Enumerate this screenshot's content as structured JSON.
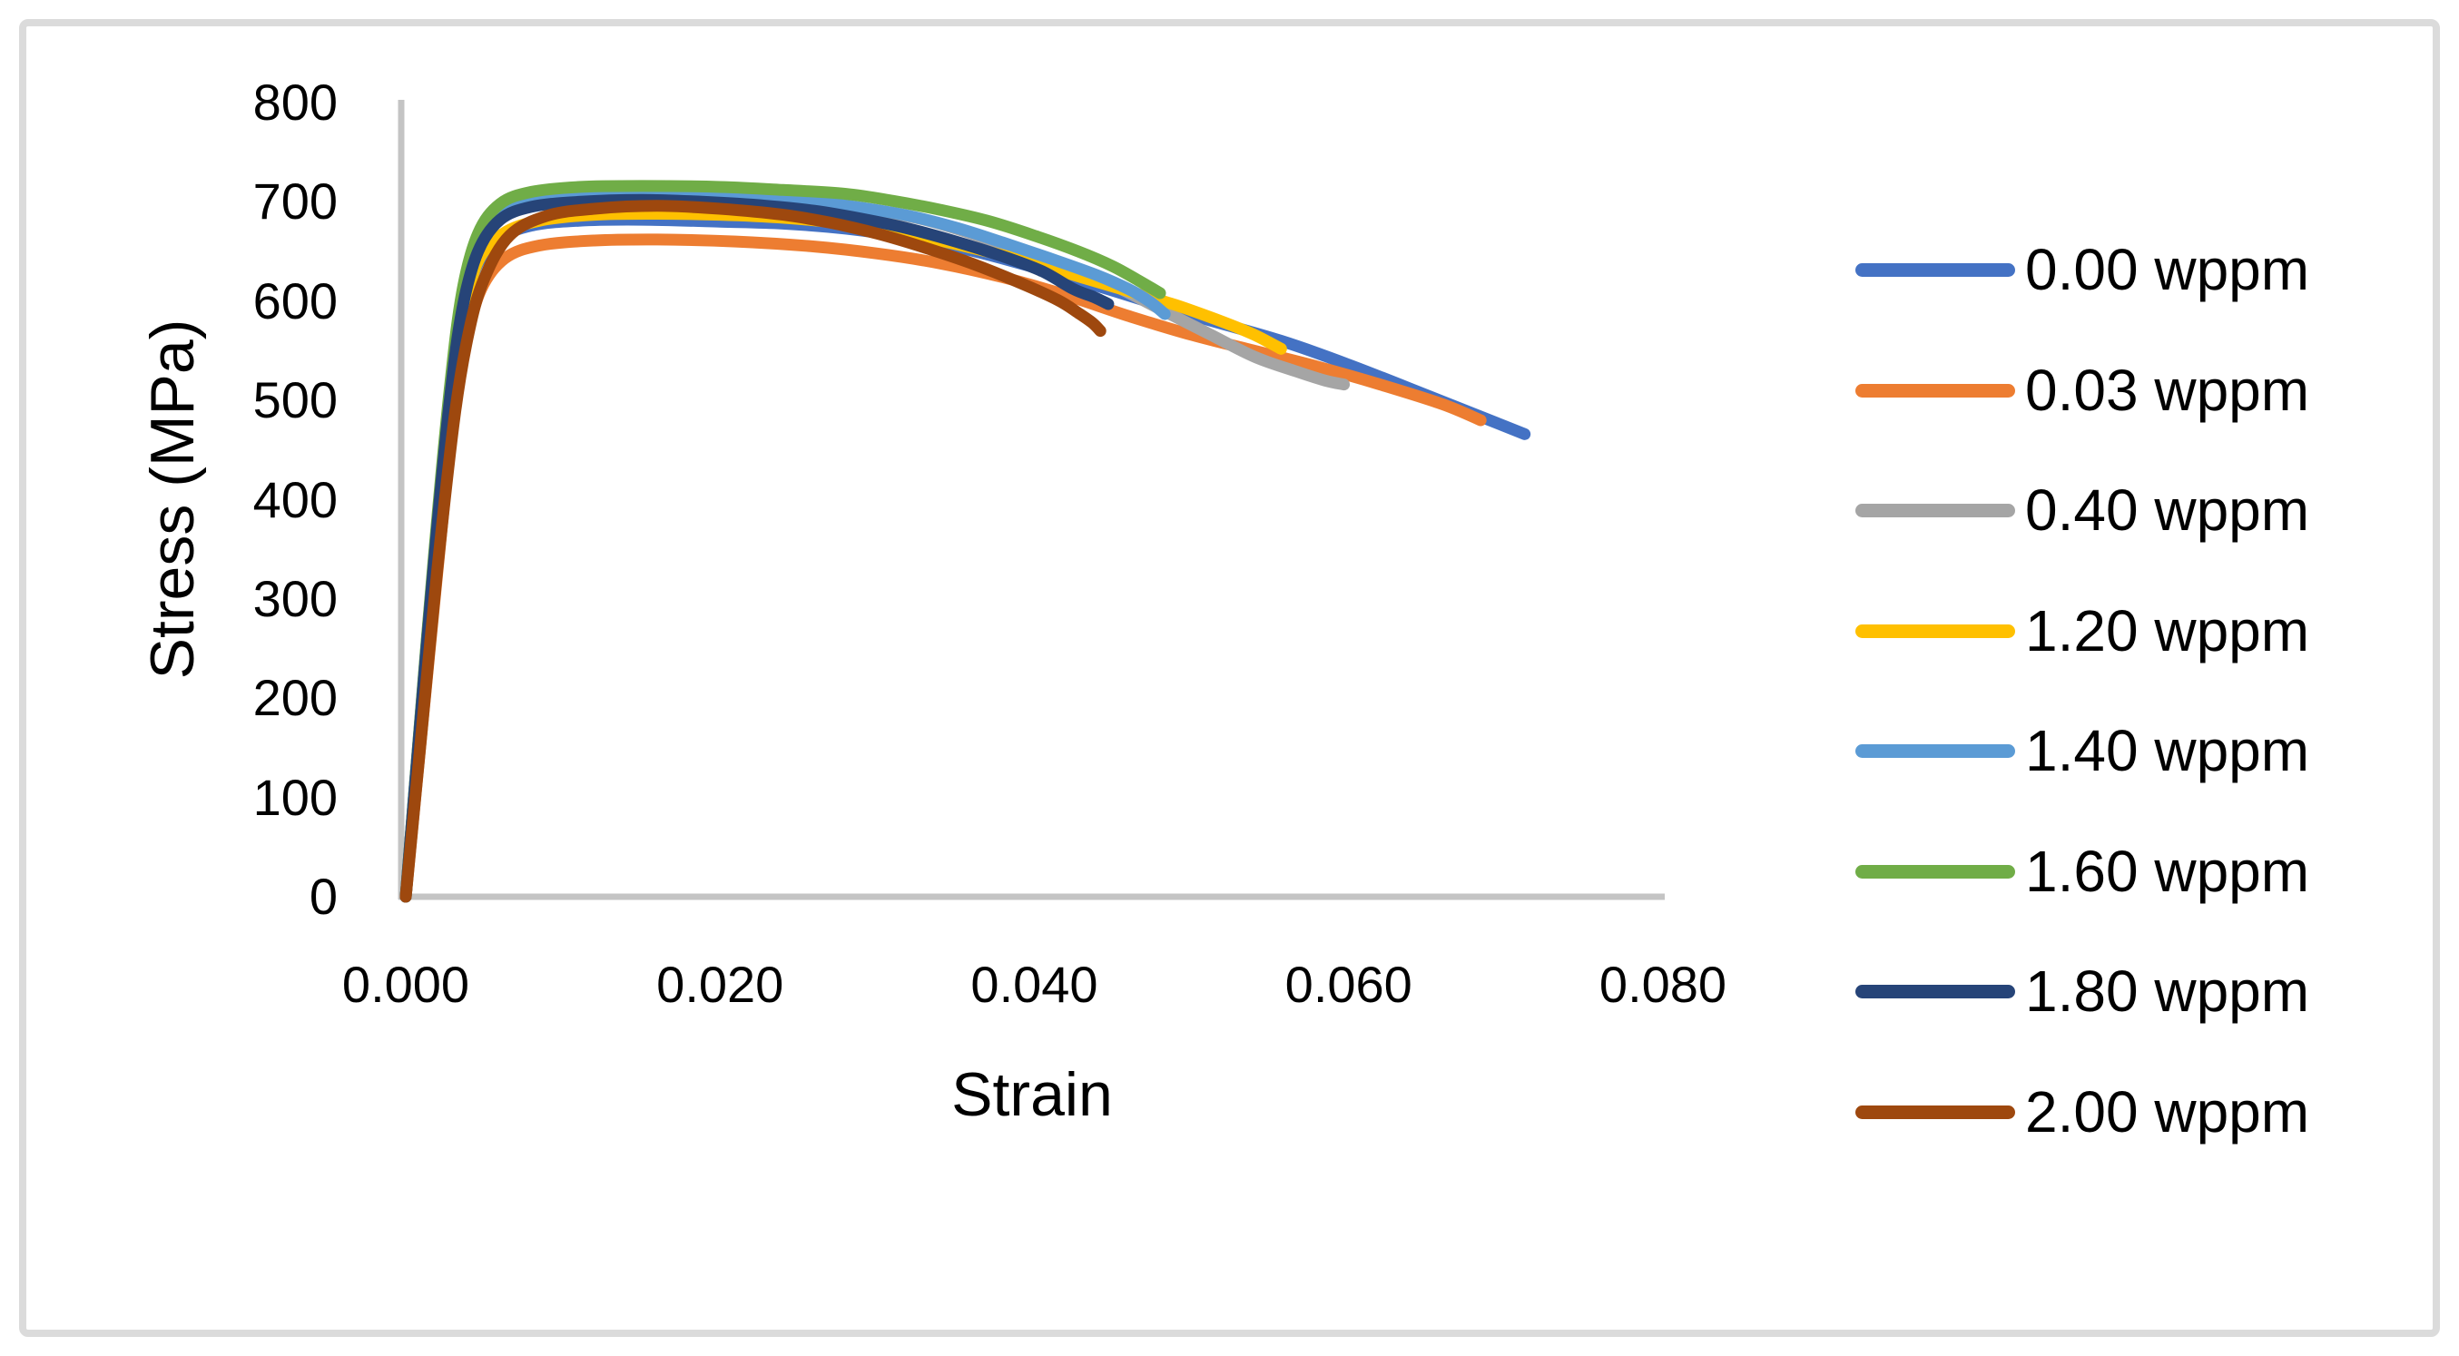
{
  "chart_data": {
    "type": "line",
    "title": "",
    "xlabel": "Strain",
    "ylabel": "Stress (MPa)",
    "xlim": [
      0.0,
      0.08
    ],
    "ylim": [
      0,
      800
    ],
    "grid": false,
    "legend_position": "right",
    "x_ticks": [
      {
        "label": "0.000",
        "value": 0.0
      },
      {
        "label": "0.020",
        "value": 0.02
      },
      {
        "label": "0.040",
        "value": 0.04
      },
      {
        "label": "0.060",
        "value": 0.06
      },
      {
        "label": "0.080",
        "value": 0.08
      }
    ],
    "y_ticks": [
      {
        "label": "0",
        "value": 0
      },
      {
        "label": "100",
        "value": 100
      },
      {
        "label": "200",
        "value": 200
      },
      {
        "label": "300",
        "value": 300
      },
      {
        "label": "400",
        "value": 400
      },
      {
        "label": "500",
        "value": 500
      },
      {
        "label": "600",
        "value": 600
      },
      {
        "label": "700",
        "value": 700
      },
      {
        "label": "800",
        "value": 800
      }
    ],
    "series": [
      {
        "name": "0.00 wppm",
        "color": "#4472C4",
        "points": [
          [
            0,
            0
          ],
          [
            0.0008,
            150
          ],
          [
            0.0018,
            330
          ],
          [
            0.0028,
            490
          ],
          [
            0.0036,
            580
          ],
          [
            0.0045,
            635
          ],
          [
            0.006,
            663
          ],
          [
            0.008,
            676
          ],
          [
            0.011,
            681
          ],
          [
            0.015,
            682
          ],
          [
            0.02,
            680
          ],
          [
            0.024,
            678
          ],
          [
            0.028,
            673
          ],
          [
            0.032,
            664
          ],
          [
            0.036,
            651
          ],
          [
            0.04,
            634
          ],
          [
            0.0447,
            612
          ],
          [
            0.05,
            586
          ],
          [
            0.0557,
            560
          ],
          [
            0.06,
            536
          ],
          [
            0.065,
            505
          ],
          [
            0.0712,
            466
          ]
        ]
      },
      {
        "name": "0.03 wppm",
        "color": "#ED7D31",
        "points": [
          [
            0,
            0
          ],
          [
            0.0009,
            148
          ],
          [
            0.002,
            325
          ],
          [
            0.003,
            478
          ],
          [
            0.0039,
            562
          ],
          [
            0.0048,
            612
          ],
          [
            0.0063,
            643
          ],
          [
            0.0085,
            656
          ],
          [
            0.012,
            661
          ],
          [
            0.016,
            662
          ],
          [
            0.021,
            660
          ],
          [
            0.026,
            655
          ],
          [
            0.03,
            648
          ],
          [
            0.034,
            638
          ],
          [
            0.038,
            624
          ],
          [
            0.042,
            606
          ],
          [
            0.046,
            585
          ],
          [
            0.05,
            566
          ],
          [
            0.054,
            550
          ],
          [
            0.058,
            534
          ],
          [
            0.062,
            516
          ],
          [
            0.066,
            496
          ],
          [
            0.0684,
            480
          ]
        ]
      },
      {
        "name": "0.40 wppm",
        "color": "#A5A5A5",
        "points": [
          [
            0,
            0
          ],
          [
            0.0008,
            155
          ],
          [
            0.0018,
            340
          ],
          [
            0.0028,
            505
          ],
          [
            0.0036,
            600
          ],
          [
            0.0046,
            655
          ],
          [
            0.006,
            685
          ],
          [
            0.008,
            698
          ],
          [
            0.011,
            704
          ],
          [
            0.015,
            706
          ],
          [
            0.019,
            705
          ],
          [
            0.023,
            702
          ],
          [
            0.027,
            697
          ],
          [
            0.03,
            691
          ],
          [
            0.033,
            682
          ],
          [
            0.036,
            668
          ],
          [
            0.039,
            651
          ],
          [
            0.042,
            634
          ],
          [
            0.045,
            616
          ],
          [
            0.048,
            592
          ],
          [
            0.051,
            568
          ],
          [
            0.054,
            544
          ],
          [
            0.0567,
            529
          ],
          [
            0.0585,
            520
          ],
          [
            0.0597,
            516
          ]
        ]
      },
      {
        "name": "1.20 wppm",
        "color": "#FFC000",
        "points": [
          [
            0,
            0
          ],
          [
            0.0008,
            152
          ],
          [
            0.0018,
            335
          ],
          [
            0.0028,
            495
          ],
          [
            0.0037,
            585
          ],
          [
            0.0046,
            640
          ],
          [
            0.0062,
            668
          ],
          [
            0.0085,
            681
          ],
          [
            0.012,
            687
          ],
          [
            0.016,
            688
          ],
          [
            0.02,
            687
          ],
          [
            0.024,
            684
          ],
          [
            0.028,
            678
          ],
          [
            0.031,
            671
          ],
          [
            0.034,
            661
          ],
          [
            0.037,
            650
          ],
          [
            0.04,
            638
          ],
          [
            0.043,
            624
          ],
          [
            0.046,
            610
          ],
          [
            0.049,
            596
          ],
          [
            0.052,
            579
          ],
          [
            0.054,
            566
          ],
          [
            0.0557,
            552
          ]
        ]
      },
      {
        "name": "1.40 wppm",
        "color": "#5B9BD5",
        "points": [
          [
            0,
            0
          ],
          [
            0.0008,
            155
          ],
          [
            0.0018,
            342
          ],
          [
            0.0028,
            508
          ],
          [
            0.0036,
            605
          ],
          [
            0.0046,
            662
          ],
          [
            0.006,
            690
          ],
          [
            0.008,
            702
          ],
          [
            0.011,
            707
          ],
          [
            0.015,
            708
          ],
          [
            0.019,
            707
          ],
          [
            0.023,
            704
          ],
          [
            0.026,
            700
          ],
          [
            0.029,
            694
          ],
          [
            0.032,
            686
          ],
          [
            0.035,
            674
          ],
          [
            0.038,
            659
          ],
          [
            0.041,
            643
          ],
          [
            0.044,
            626
          ],
          [
            0.046,
            612
          ],
          [
            0.0473,
            600
          ],
          [
            0.0483,
            587
          ]
        ]
      },
      {
        "name": "1.60 wppm",
        "color": "#70AD47",
        "points": [
          [
            0,
            0
          ],
          [
            0.0008,
            156
          ],
          [
            0.0018,
            345
          ],
          [
            0.0028,
            512
          ],
          [
            0.0036,
            610
          ],
          [
            0.0046,
            668
          ],
          [
            0.006,
            698
          ],
          [
            0.008,
            710
          ],
          [
            0.011,
            715
          ],
          [
            0.015,
            716
          ],
          [
            0.02,
            715
          ],
          [
            0.024,
            712
          ],
          [
            0.028,
            708
          ],
          [
            0.031,
            701
          ],
          [
            0.034,
            692
          ],
          [
            0.037,
            681
          ],
          [
            0.04,
            666
          ],
          [
            0.0428,
            650
          ],
          [
            0.045,
            635
          ],
          [
            0.0466,
            621
          ],
          [
            0.048,
            608
          ]
        ]
      },
      {
        "name": "1.80 wppm",
        "color": "#264478",
        "points": [
          [
            0,
            0
          ],
          [
            0.0008,
            153
          ],
          [
            0.0018,
            338
          ],
          [
            0.0028,
            500
          ],
          [
            0.0036,
            592
          ],
          [
            0.0046,
            650
          ],
          [
            0.006,
            682
          ],
          [
            0.008,
            695
          ],
          [
            0.011,
            700
          ],
          [
            0.015,
            702
          ],
          [
            0.019,
            700
          ],
          [
            0.023,
            696
          ],
          [
            0.026,
            691
          ],
          [
            0.029,
            683
          ],
          [
            0.032,
            673
          ],
          [
            0.035,
            660
          ],
          [
            0.038,
            645
          ],
          [
            0.0405,
            630
          ],
          [
            0.0425,
            612
          ],
          [
            0.0438,
            604
          ],
          [
            0.0447,
            597
          ]
        ]
      },
      {
        "name": "2.00 wppm",
        "color": "#9E480E",
        "points": [
          [
            0,
            0
          ],
          [
            0.0009,
            148
          ],
          [
            0.002,
            328
          ],
          [
            0.0031,
            483
          ],
          [
            0.004,
            568
          ],
          [
            0.005,
            623
          ],
          [
            0.0066,
            666
          ],
          [
            0.009,
            686
          ],
          [
            0.012,
            693
          ],
          [
            0.016,
            696
          ],
          [
            0.02,
            693
          ],
          [
            0.024,
            687
          ],
          [
            0.027,
            679
          ],
          [
            0.03,
            668
          ],
          [
            0.033,
            654
          ],
          [
            0.036,
            638
          ],
          [
            0.039,
            619
          ],
          [
            0.0415,
            601
          ],
          [
            0.0428,
            588
          ],
          [
            0.0437,
            578
          ],
          [
            0.0442,
            570
          ]
        ]
      }
    ],
    "style": {
      "axis_color": "#C4C4C4",
      "frame_color": "#DBDBDB",
      "text_color": "#000000",
      "line_width": 13,
      "background": "#FFFFFF"
    }
  }
}
